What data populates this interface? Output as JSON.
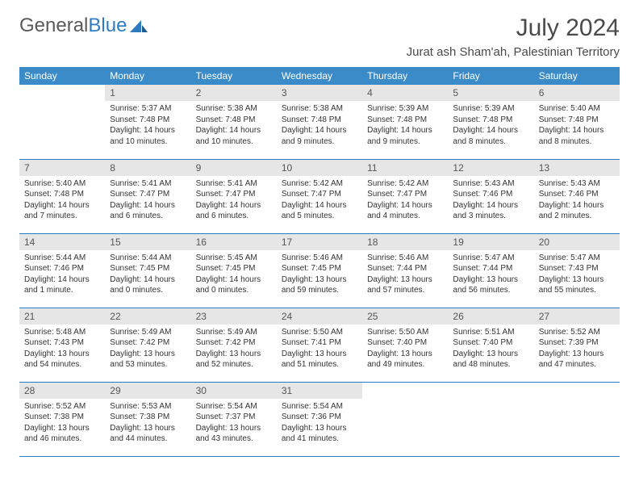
{
  "logo": {
    "text1": "General",
    "text2": "Blue"
  },
  "title": "July 2024",
  "location": "Jurat ash Sham'ah, Palestinian Territory",
  "colors": {
    "header_bg": "#3b8bc9",
    "header_text": "#ffffff",
    "daynum_bg": "#e6e6e6",
    "rule": "#2f7bbf",
    "logo_gray": "#5a5a5a",
    "logo_blue": "#2f7bbf"
  },
  "columns": [
    "Sunday",
    "Monday",
    "Tuesday",
    "Wednesday",
    "Thursday",
    "Friday",
    "Saturday"
  ],
  "weeks": [
    [
      {
        "num": "",
        "sunrise": "",
        "sunset": "",
        "daylight": ""
      },
      {
        "num": "1",
        "sunrise": "Sunrise: 5:37 AM",
        "sunset": "Sunset: 7:48 PM",
        "daylight": "Daylight: 14 hours and 10 minutes."
      },
      {
        "num": "2",
        "sunrise": "Sunrise: 5:38 AM",
        "sunset": "Sunset: 7:48 PM",
        "daylight": "Daylight: 14 hours and 10 minutes."
      },
      {
        "num": "3",
        "sunrise": "Sunrise: 5:38 AM",
        "sunset": "Sunset: 7:48 PM",
        "daylight": "Daylight: 14 hours and 9 minutes."
      },
      {
        "num": "4",
        "sunrise": "Sunrise: 5:39 AM",
        "sunset": "Sunset: 7:48 PM",
        "daylight": "Daylight: 14 hours and 9 minutes."
      },
      {
        "num": "5",
        "sunrise": "Sunrise: 5:39 AM",
        "sunset": "Sunset: 7:48 PM",
        "daylight": "Daylight: 14 hours and 8 minutes."
      },
      {
        "num": "6",
        "sunrise": "Sunrise: 5:40 AM",
        "sunset": "Sunset: 7:48 PM",
        "daylight": "Daylight: 14 hours and 8 minutes."
      }
    ],
    [
      {
        "num": "7",
        "sunrise": "Sunrise: 5:40 AM",
        "sunset": "Sunset: 7:48 PM",
        "daylight": "Daylight: 14 hours and 7 minutes."
      },
      {
        "num": "8",
        "sunrise": "Sunrise: 5:41 AM",
        "sunset": "Sunset: 7:47 PM",
        "daylight": "Daylight: 14 hours and 6 minutes."
      },
      {
        "num": "9",
        "sunrise": "Sunrise: 5:41 AM",
        "sunset": "Sunset: 7:47 PM",
        "daylight": "Daylight: 14 hours and 6 minutes."
      },
      {
        "num": "10",
        "sunrise": "Sunrise: 5:42 AM",
        "sunset": "Sunset: 7:47 PM",
        "daylight": "Daylight: 14 hours and 5 minutes."
      },
      {
        "num": "11",
        "sunrise": "Sunrise: 5:42 AM",
        "sunset": "Sunset: 7:47 PM",
        "daylight": "Daylight: 14 hours and 4 minutes."
      },
      {
        "num": "12",
        "sunrise": "Sunrise: 5:43 AM",
        "sunset": "Sunset: 7:46 PM",
        "daylight": "Daylight: 14 hours and 3 minutes."
      },
      {
        "num": "13",
        "sunrise": "Sunrise: 5:43 AM",
        "sunset": "Sunset: 7:46 PM",
        "daylight": "Daylight: 14 hours and 2 minutes."
      }
    ],
    [
      {
        "num": "14",
        "sunrise": "Sunrise: 5:44 AM",
        "sunset": "Sunset: 7:46 PM",
        "daylight": "Daylight: 14 hours and 1 minute."
      },
      {
        "num": "15",
        "sunrise": "Sunrise: 5:44 AM",
        "sunset": "Sunset: 7:45 PM",
        "daylight": "Daylight: 14 hours and 0 minutes."
      },
      {
        "num": "16",
        "sunrise": "Sunrise: 5:45 AM",
        "sunset": "Sunset: 7:45 PM",
        "daylight": "Daylight: 14 hours and 0 minutes."
      },
      {
        "num": "17",
        "sunrise": "Sunrise: 5:46 AM",
        "sunset": "Sunset: 7:45 PM",
        "daylight": "Daylight: 13 hours and 59 minutes."
      },
      {
        "num": "18",
        "sunrise": "Sunrise: 5:46 AM",
        "sunset": "Sunset: 7:44 PM",
        "daylight": "Daylight: 13 hours and 57 minutes."
      },
      {
        "num": "19",
        "sunrise": "Sunrise: 5:47 AM",
        "sunset": "Sunset: 7:44 PM",
        "daylight": "Daylight: 13 hours and 56 minutes."
      },
      {
        "num": "20",
        "sunrise": "Sunrise: 5:47 AM",
        "sunset": "Sunset: 7:43 PM",
        "daylight": "Daylight: 13 hours and 55 minutes."
      }
    ],
    [
      {
        "num": "21",
        "sunrise": "Sunrise: 5:48 AM",
        "sunset": "Sunset: 7:43 PM",
        "daylight": "Daylight: 13 hours and 54 minutes."
      },
      {
        "num": "22",
        "sunrise": "Sunrise: 5:49 AM",
        "sunset": "Sunset: 7:42 PM",
        "daylight": "Daylight: 13 hours and 53 minutes."
      },
      {
        "num": "23",
        "sunrise": "Sunrise: 5:49 AM",
        "sunset": "Sunset: 7:42 PM",
        "daylight": "Daylight: 13 hours and 52 minutes."
      },
      {
        "num": "24",
        "sunrise": "Sunrise: 5:50 AM",
        "sunset": "Sunset: 7:41 PM",
        "daylight": "Daylight: 13 hours and 51 minutes."
      },
      {
        "num": "25",
        "sunrise": "Sunrise: 5:50 AM",
        "sunset": "Sunset: 7:40 PM",
        "daylight": "Daylight: 13 hours and 49 minutes."
      },
      {
        "num": "26",
        "sunrise": "Sunrise: 5:51 AM",
        "sunset": "Sunset: 7:40 PM",
        "daylight": "Daylight: 13 hours and 48 minutes."
      },
      {
        "num": "27",
        "sunrise": "Sunrise: 5:52 AM",
        "sunset": "Sunset: 7:39 PM",
        "daylight": "Daylight: 13 hours and 47 minutes."
      }
    ],
    [
      {
        "num": "28",
        "sunrise": "Sunrise: 5:52 AM",
        "sunset": "Sunset: 7:38 PM",
        "daylight": "Daylight: 13 hours and 46 minutes."
      },
      {
        "num": "29",
        "sunrise": "Sunrise: 5:53 AM",
        "sunset": "Sunset: 7:38 PM",
        "daylight": "Daylight: 13 hours and 44 minutes."
      },
      {
        "num": "30",
        "sunrise": "Sunrise: 5:54 AM",
        "sunset": "Sunset: 7:37 PM",
        "daylight": "Daylight: 13 hours and 43 minutes."
      },
      {
        "num": "31",
        "sunrise": "Sunrise: 5:54 AM",
        "sunset": "Sunset: 7:36 PM",
        "daylight": "Daylight: 13 hours and 41 minutes."
      },
      {
        "num": "",
        "sunrise": "",
        "sunset": "",
        "daylight": ""
      },
      {
        "num": "",
        "sunrise": "",
        "sunset": "",
        "daylight": ""
      },
      {
        "num": "",
        "sunrise": "",
        "sunset": "",
        "daylight": ""
      }
    ]
  ]
}
